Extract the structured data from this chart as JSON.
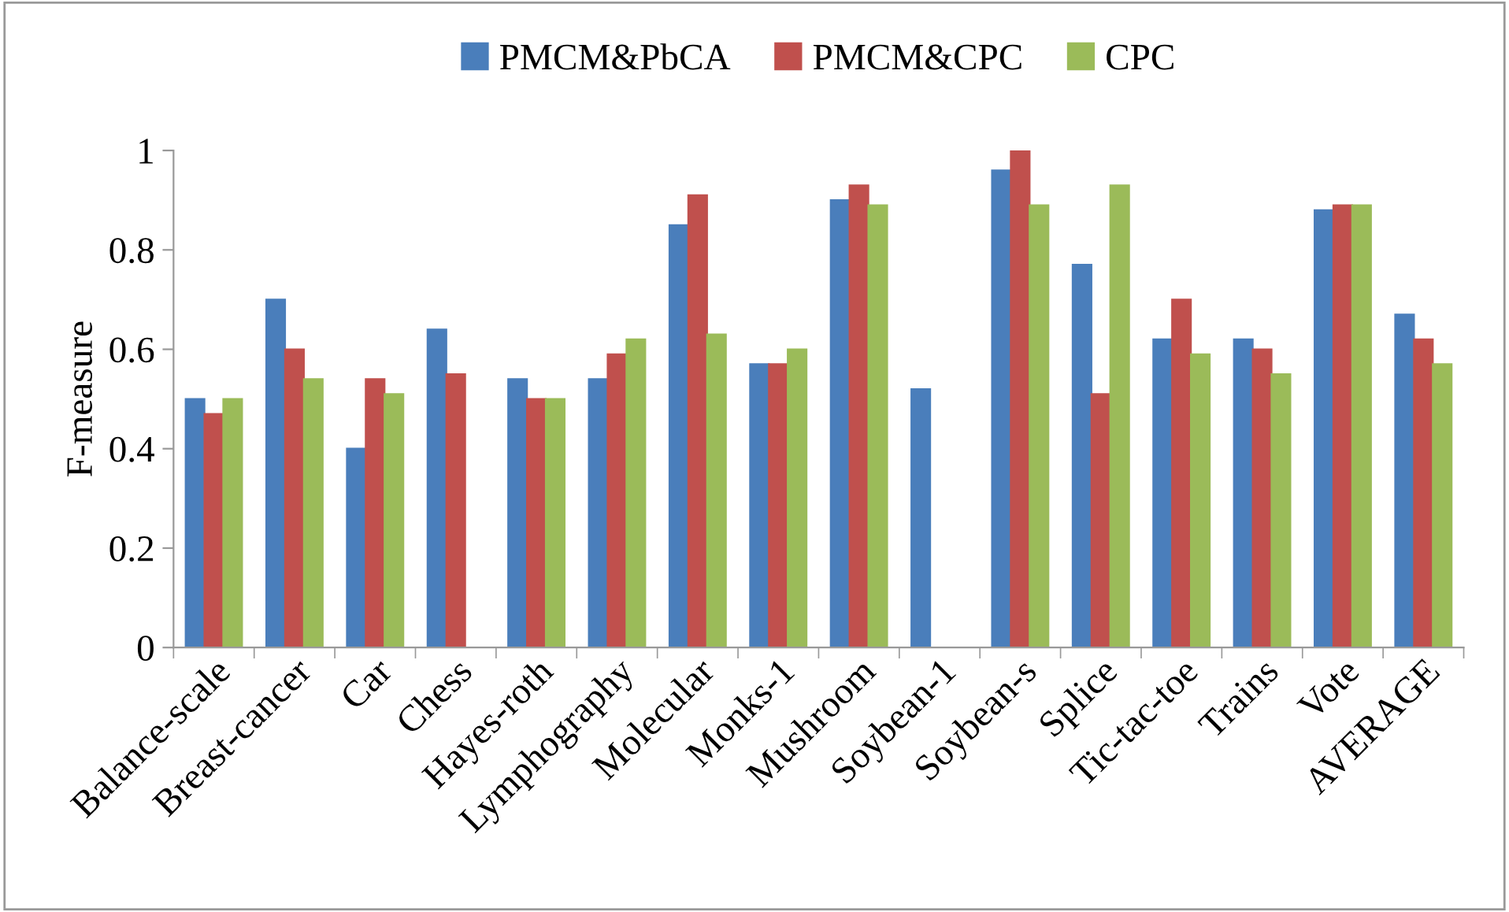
{
  "chart_data": {
    "type": "bar",
    "ylabel": "F-measure",
    "categories": [
      "Balance-scale",
      "Breast-cancer",
      "Car",
      "Chess",
      "Hayes-roth",
      "Lymphography",
      "Molecular",
      "Monks-1",
      "Mushroom",
      "Soybean-1",
      "Soybean-s",
      "Splice",
      "Tic-tac-toe",
      "Trains",
      "Vote",
      "AVERAGE"
    ],
    "series": [
      {
        "name": "PMCM&PbCA",
        "color": "#4a7ebb",
        "values": [
          0.5,
          0.7,
          0.4,
          0.64,
          0.54,
          0.54,
          0.85,
          0.57,
          0.9,
          0.52,
          0.96,
          0.77,
          0.62,
          0.62,
          0.88,
          0.67
        ]
      },
      {
        "name": "PMCM&CPC",
        "color": "#c0504d",
        "values": [
          0.47,
          0.6,
          0.54,
          0.55,
          0.5,
          0.59,
          0.91,
          0.57,
          0.93,
          null,
          1.0,
          0.51,
          0.7,
          0.6,
          0.89,
          0.62
        ]
      },
      {
        "name": "CPC",
        "color": "#9bbb59",
        "values": [
          0.5,
          0.54,
          0.51,
          null,
          0.5,
          0.62,
          0.63,
          0.6,
          0.89,
          null,
          0.89,
          0.93,
          0.59,
          0.55,
          0.89,
          0.57
        ]
      }
    ],
    "ylim": [
      0,
      1
    ],
    "yticks": [
      0,
      0.2,
      0.4,
      0.6,
      0.8,
      1
    ],
    "legend": "top",
    "grid": false
  }
}
